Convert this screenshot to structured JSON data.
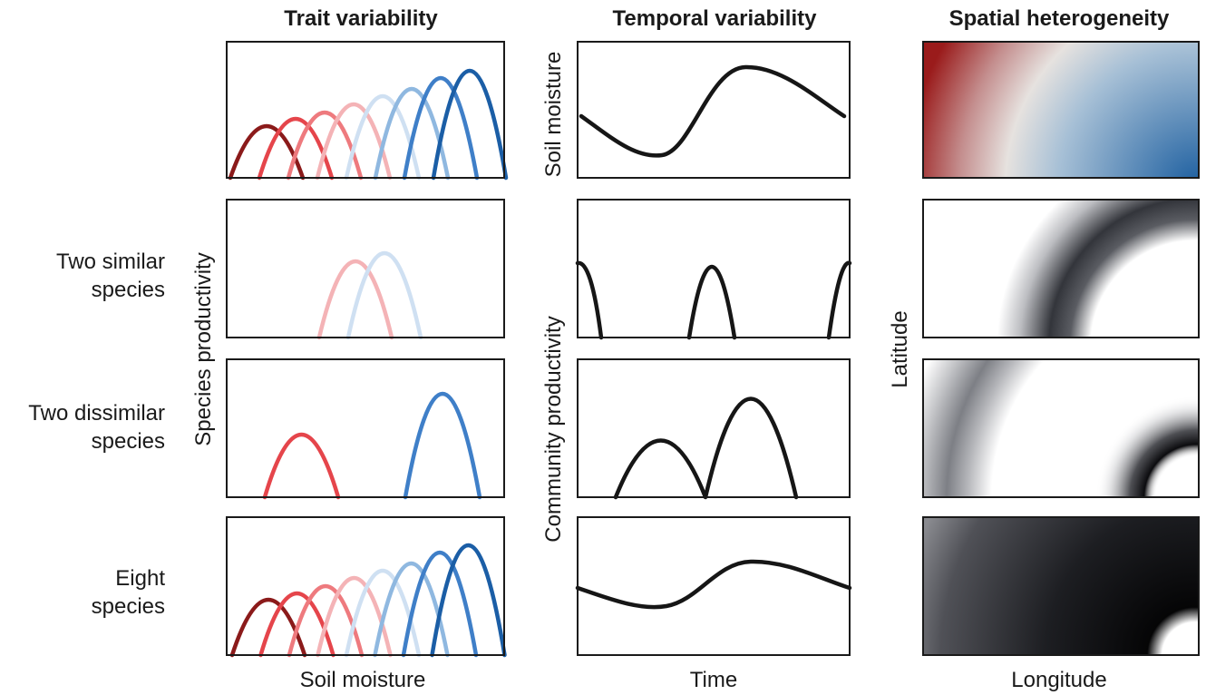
{
  "headers": {
    "trait": "Trait variability",
    "temporal": "Temporal variability",
    "spatial": "Spatial heterogeneity"
  },
  "row_labels": {
    "two_similar_line1": "Two similar",
    "two_similar_line2": "species",
    "two_dissimilar_line1": "Two dissimilar",
    "two_dissimilar_line2": "species",
    "eight_line1": "Eight",
    "eight_line2": "species"
  },
  "axis_labels": {
    "species_productivity": "Species productivity",
    "soil_moisture_y": "Soil moisture",
    "community_productivity": "Community productivity",
    "latitude": "Latitude",
    "soil_moisture_x": "Soil moisture",
    "time": "Time",
    "longitude": "Longitude"
  },
  "colors": {
    "species_palette": [
      "#8b1a1a",
      "#e5454b",
      "#ee7a7e",
      "#f4b3b6",
      "#cfe0f2",
      "#8fb8e0",
      "#3f7fc8",
      "#1b5ea6"
    ],
    "community_line": "#161616",
    "spatial_high": "#9a1b1b",
    "spatial_mid": "#e4e2e0",
    "spatial_low": "#1d5fa0"
  }
}
